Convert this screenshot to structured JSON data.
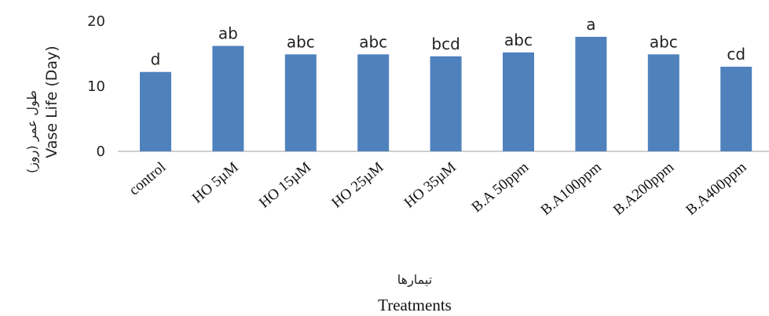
{
  "chart_data": {
    "type": "bar",
    "categories": [
      "control",
      "HO 5µM",
      "HO 15µM",
      "HO 25µM",
      "HO 35µM",
      "B.A 50ppm",
      "B.A100ppm",
      "B.A200ppm",
      "B.A400ppm"
    ],
    "values": [
      12.2,
      16.2,
      14.9,
      14.9,
      14.6,
      15.2,
      17.6,
      14.9,
      13.0
    ],
    "significance_letters": [
      "d",
      "ab",
      "abc",
      "abc",
      "bcd",
      "abc",
      "a",
      "abc",
      "cd"
    ],
    "ylabel": "Vase Life (Day)",
    "ylabel_alt": "طول عمر (روز)",
    "xlabel": "Treatments",
    "xlabel_alt": "تیمارها",
    "ylim": [
      0,
      20
    ],
    "yticks": [
      0,
      10,
      20
    ],
    "bar_color": "#4f81bd",
    "grid": false,
    "legend": "none"
  }
}
